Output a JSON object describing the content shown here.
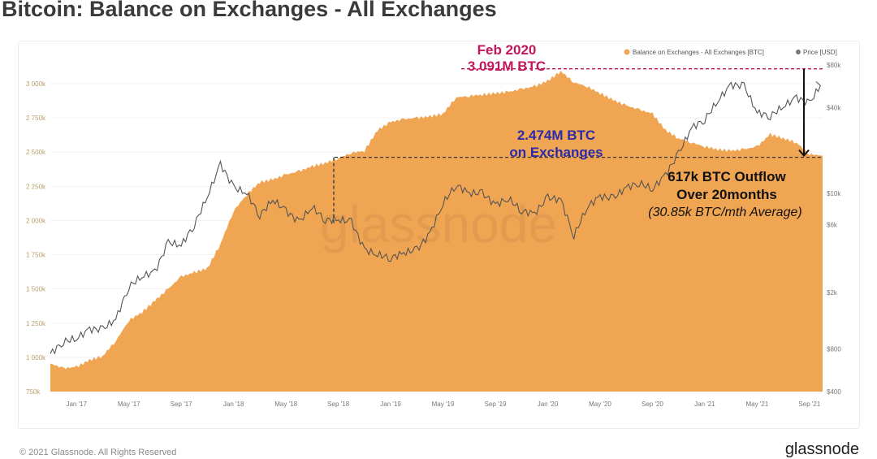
{
  "title": "Bitcoin: Balance on Exchanges - All Exchanges",
  "footer": {
    "copyright": "© 2021 Glassnode. All Rights Reserved",
    "brand": "glassnode"
  },
  "watermark": "glassnode",
  "colors": {
    "balance": "#f0a552",
    "price": "#555555",
    "peak_line": "#c2185b",
    "current_text": "#2b2aa8",
    "axis_left": "#b8a06a"
  },
  "chart_data": {
    "type": "area",
    "title": "Bitcoin: Balance on Exchanges - All Exchanges",
    "legend": [
      "Balance on Exchanges - All Exchanges [BTC]",
      "Price [USD]"
    ],
    "legend_position": "top-right",
    "x": [
      "2016-11",
      "2016-12",
      "2017-01",
      "2017-02",
      "2017-03",
      "2017-04",
      "2017-05",
      "2017-06",
      "2017-07",
      "2017-08",
      "2017-09",
      "2017-10",
      "2017-11",
      "2017-12",
      "2018-01",
      "2018-02",
      "2018-03",
      "2018-04",
      "2018-05",
      "2018-06",
      "2018-07",
      "2018-08",
      "2018-09",
      "2018-10",
      "2018-11",
      "2018-12",
      "2019-01",
      "2019-02",
      "2019-03",
      "2019-04",
      "2019-05",
      "2019-06",
      "2019-07",
      "2019-08",
      "2019-09",
      "2019-10",
      "2019-11",
      "2019-12",
      "2020-01",
      "2020-02",
      "2020-03",
      "2020-04",
      "2020-05",
      "2020-06",
      "2020-07",
      "2020-08",
      "2020-09",
      "2020-10",
      "2020-11",
      "2020-12",
      "2021-01",
      "2021-02",
      "2021-03",
      "2021-04",
      "2021-05",
      "2021-06",
      "2021-07",
      "2021-08",
      "2021-09",
      "2021-10"
    ],
    "series": [
      {
        "name": "Balance on Exchanges - All Exchanges [BTC]",
        "unit": "k BTC",
        "axis": "left",
        "values": [
          955,
          920,
          930,
          980,
          1010,
          1120,
          1270,
          1330,
          1415,
          1500,
          1590,
          1620,
          1650,
          1830,
          2070,
          2190,
          2280,
          2300,
          2335,
          2360,
          2395,
          2420,
          2455,
          2495,
          2510,
          2660,
          2720,
          2740,
          2750,
          2760,
          2780,
          2900,
          2910,
          2920,
          2930,
          2940,
          2960,
          2980,
          3020,
          3091,
          3010,
          2980,
          2930,
          2880,
          2840,
          2810,
          2780,
          2660,
          2600,
          2570,
          2540,
          2520,
          2510,
          2520,
          2540,
          2630,
          2600,
          2570,
          2485,
          2474
        ]
      },
      {
        "name": "Price [USD]",
        "unit": "USD",
        "axis": "right",
        "scale": "log",
        "values": [
          740,
          900,
          950,
          1100,
          1100,
          1300,
          2200,
          2600,
          2800,
          4500,
          4300,
          6000,
          9500,
          16000,
          11000,
          10000,
          7000,
          9000,
          7500,
          6300,
          8000,
          6500,
          6500,
          6300,
          4000,
          3700,
          3500,
          3800,
          4000,
          5200,
          8500,
          11500,
          10000,
          10000,
          8300,
          9200,
          7500,
          7200,
          9300,
          9000,
          5000,
          8000,
          9500,
          9200,
          11000,
          11800,
          10700,
          13500,
          19000,
          29000,
          33000,
          45000,
          58000,
          57000,
          37000,
          35000,
          41000,
          47000,
          43000,
          61000
        ]
      }
    ],
    "y_left": {
      "ticks": [
        "750k",
        "1 000k",
        "1 250k",
        "1 500k",
        "1 750k",
        "2 000k",
        "2 250k",
        "2 500k",
        "2 750k",
        "3 000k"
      ],
      "values": [
        750,
        1000,
        1250,
        1500,
        1750,
        2000,
        2250,
        2500,
        2750,
        3000
      ],
      "range": [
        750,
        3150
      ]
    },
    "y_right": {
      "ticks": [
        "$400",
        "$800",
        "$2k",
        "$6k",
        "$10k",
        "$40k",
        "$80k"
      ],
      "values": [
        400,
        800,
        2000,
        6000,
        10000,
        40000,
        80000
      ],
      "range": [
        400,
        80000
      ]
    },
    "x_ticks": [
      "Jan '17",
      "May '17",
      "Sep '17",
      "Jan '18",
      "May '18",
      "Sep '18",
      "Jan '19",
      "May '19",
      "Sep '19",
      "Jan '20",
      "May '20",
      "Sep '20",
      "Jan '21",
      "May '21",
      "Sep '21"
    ],
    "x_tick_months": [
      2,
      6,
      10,
      14,
      18,
      22,
      26,
      30,
      34,
      38,
      42,
      46,
      50,
      54,
      58
    ],
    "annotations": {
      "peak_label_1": "Feb 2020",
      "peak_label_2": "3.091M BTC",
      "peak_value": 3091,
      "current_label_1": "2.474M BTC",
      "current_label_2": "on Exchanges",
      "current_value": 2474,
      "outflow_1": "617k BTC Outflow",
      "outflow_2": "Over 20months",
      "outflow_3": "(30.85k BTC/mth Average)"
    }
  }
}
